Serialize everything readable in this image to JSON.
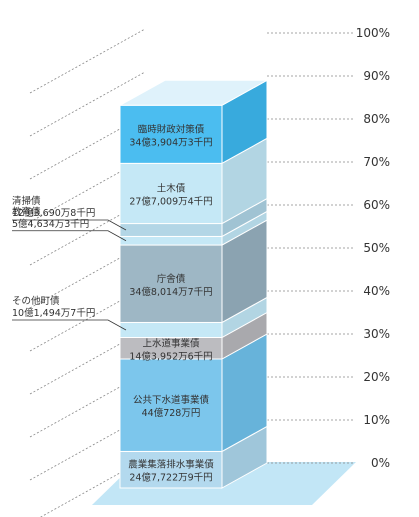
{
  "chart_data": {
    "type": "stacked-bar-3d",
    "ylim": [
      0,
      100
    ],
    "y_ticks": [
      {
        "value": 0,
        "label": "0%"
      },
      {
        "value": 10,
        "label": "10%"
      },
      {
        "value": 20,
        "label": "20%"
      },
      {
        "value": 30,
        "label": "30%"
      },
      {
        "value": 40,
        "label": "40%"
      },
      {
        "value": 50,
        "label": "50%"
      },
      {
        "value": 60,
        "label": "60%"
      },
      {
        "value": 70,
        "label": "70%"
      },
      {
        "value": 80,
        "label": "80%"
      },
      {
        "value": 90,
        "label": "90%"
      },
      {
        "value": 100,
        "label": "100%"
      }
    ],
    "segments": [
      {
        "name": "農業集落排水事業債",
        "amount": "24億7,722万9千円",
        "value": 8.5,
        "color": "#b3d9ee",
        "side": "#9fc6da",
        "label_inside": true
      },
      {
        "name": "公共下水道事業債",
        "amount": "44億728万円",
        "value": 21.5,
        "color": "#7cc6ec",
        "side": "#67b3da",
        "label_inside": true
      },
      {
        "name": "上水道事業債",
        "amount": "14億3,952万6千円",
        "value": 5.0,
        "color": "#bcbcc0",
        "side": "#a9a9ad",
        "label_inside": true
      },
      {
        "name": "その他町債",
        "amount": "10億1,494万7千円",
        "value": 3.5,
        "color": "#c5e8f6",
        "side": "#b2d5e3",
        "label_inside": false
      },
      {
        "name": "庁舎債",
        "amount": "34億8,014万7千円",
        "value": 18.0,
        "color": "#9eb7c5",
        "side": "#8ba3b1",
        "label_inside": true
      },
      {
        "name": "教育債",
        "amount": "5億4,634万3千円",
        "value": 2.0,
        "color": "#c5e8f6",
        "side": "#b2d5e3",
        "label_inside": false
      },
      {
        "name": "清掃債",
        "amount": "12億3,690万8千円",
        "value": 3.0,
        "color": "#b3d6e6",
        "side": "#a0c3d3",
        "label_inside": false
      },
      {
        "name": "土木債",
        "amount": "27億7,009万4千円",
        "value": 14.0,
        "color": "#c5e8f6",
        "side": "#b2d5e3",
        "label_inside": true
      },
      {
        "name": "臨時財政対策債",
        "amount": "34億3,904万3千円",
        "value": 13.5,
        "color": "#4bbdf0",
        "side": "#38aadd",
        "label_inside": true
      }
    ]
  }
}
